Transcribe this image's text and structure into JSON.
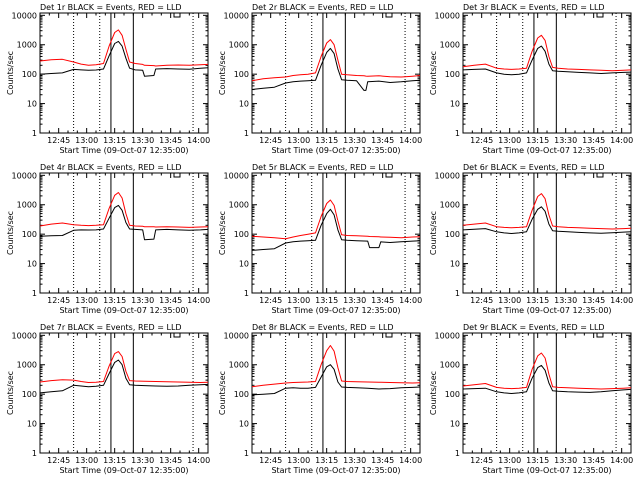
{
  "colors": {
    "events": "#000000",
    "lld": "#ff0000",
    "axes": "#000000"
  },
  "chart_data": [
    {
      "type": "line",
      "title": "Det 1r BLACK = Events, RED = LLD",
      "xlabel": "Start Time (09-Oct-07 12:35:00)",
      "ylabel": "Counts/sec",
      "xticks": [
        "12:45",
        "13:00",
        "13:15",
        "13:30",
        "13:45",
        "14:00"
      ],
      "yticks": [
        "1",
        "10",
        "100",
        "1000",
        "10000"
      ],
      "ylim": [
        1,
        12000
      ],
      "yscale": "log",
      "xlim_minutes": [
        35,
        125
      ],
      "dotted_x_minutes": [
        53,
        67,
        117
      ],
      "solid_x_minutes": [
        73,
        85
      ],
      "x_minutes": [
        35,
        41,
        47,
        53,
        57,
        61,
        65,
        69,
        72,
        75,
        77,
        79,
        81,
        83,
        86,
        90,
        91,
        96,
        97,
        103,
        109,
        115,
        121,
        125
      ],
      "series": [
        {
          "values": [
            100,
            105,
            110,
            145,
            140,
            135,
            138,
            150,
            420,
            1100,
            1300,
            900,
            350,
            160,
            140,
            135,
            85,
            90,
            150,
            155,
            150,
            148,
            160,
            165
          ]
        },
        {
          "values": [
            280,
            310,
            320,
            260,
            220,
            200,
            210,
            230,
            900,
            2600,
            3200,
            2100,
            700,
            260,
            230,
            215,
            200,
            195,
            190,
            200,
            205,
            200,
            210,
            215
          ]
        }
      ]
    },
    {
      "type": "line",
      "title": "Det 2r BLACK = Events, RED = LLD",
      "xlabel": "Start Time (09-Oct-07 12:35:00)",
      "ylabel": "Counts/sec",
      "xticks": [
        "12:45",
        "13:00",
        "13:15",
        "13:30",
        "13:45",
        "14:00"
      ],
      "yticks": [
        "1",
        "10",
        "100",
        "1000",
        "10000"
      ],
      "ylim": [
        1,
        12000
      ],
      "yscale": "log",
      "xlim_minutes": [
        35,
        125
      ],
      "dotted_x_minutes": [
        53,
        67,
        117
      ],
      "solid_x_minutes": [
        73,
        85
      ],
      "x_minutes": [
        35,
        41,
        47,
        53,
        57,
        61,
        65,
        69,
        72,
        75,
        77,
        79,
        81,
        83,
        86,
        91,
        95,
        96,
        97,
        103,
        109,
        115,
        121,
        125
      ],
      "series": [
        {
          "values": [
            30,
            33,
            36,
            50,
            55,
            58,
            60,
            62,
            200,
            550,
            750,
            500,
            150,
            65,
            62,
            60,
            28,
            28,
            55,
            58,
            52,
            55,
            60,
            62
          ]
        },
        {
          "values": [
            60,
            70,
            75,
            80,
            90,
            95,
            100,
            110,
            400,
            1150,
            1500,
            1000,
            300,
            100,
            95,
            90,
            88,
            86,
            85,
            88,
            82,
            80,
            85,
            90
          ]
        }
      ]
    },
    {
      "type": "line",
      "title": "Det 3r BLACK = Events, RED = LLD",
      "xlabel": "Start Time (09-Oct-07 12:35:00)",
      "ylabel": "Counts/sec",
      "xticks": [
        "12:45",
        "13:00",
        "13:15",
        "13:30",
        "13:45",
        "14:00"
      ],
      "yticks": [
        "1",
        "10",
        "100",
        "1000",
        "10000"
      ],
      "ylim": [
        1,
        12000
      ],
      "yscale": "log",
      "xlim_minutes": [
        35,
        125
      ],
      "dotted_x_minutes": [
        53,
        67,
        117
      ],
      "solid_x_minutes": [
        73,
        85
      ],
      "x_minutes": [
        35,
        41,
        47,
        53,
        57,
        61,
        65,
        69,
        72,
        75,
        77,
        79,
        81,
        83,
        86,
        91,
        97,
        103,
        109,
        115,
        121,
        125
      ],
      "series": [
        {
          "values": [
            140,
            145,
            150,
            110,
            100,
            95,
            100,
            110,
            300,
            750,
            900,
            600,
            220,
            130,
            125,
            120,
            115,
            110,
            105,
            110,
            115,
            118
          ]
        },
        {
          "values": [
            180,
            200,
            220,
            160,
            150,
            145,
            150,
            160,
            600,
            1700,
            2100,
            1400,
            400,
            170,
            160,
            150,
            145,
            140,
            135,
            130,
            135,
            140
          ]
        }
      ]
    },
    {
      "type": "line",
      "title": "Det 4r BLACK = Events, RED = LLD",
      "xlabel": "Start Time (09-Oct-07 12:35:00)",
      "ylabel": "Counts/sec",
      "xticks": [
        "12:45",
        "13:00",
        "13:15",
        "13:30",
        "13:45",
        "14:00"
      ],
      "yticks": [
        "1",
        "10",
        "100",
        "1000",
        "10000"
      ],
      "ylim": [
        1,
        12000
      ],
      "yscale": "log",
      "xlim_minutes": [
        35,
        125
      ],
      "dotted_x_minutes": [
        53,
        67,
        117
      ],
      "solid_x_minutes": [
        73,
        85
      ],
      "x_minutes": [
        35,
        41,
        47,
        53,
        57,
        61,
        65,
        69,
        72,
        75,
        77,
        79,
        81,
        83,
        86,
        90,
        91,
        96,
        97,
        103,
        109,
        115,
        121,
        125
      ],
      "series": [
        {
          "values": [
            85,
            88,
            90,
            135,
            140,
            138,
            140,
            150,
            350,
            800,
            950,
            650,
            250,
            150,
            145,
            140,
            65,
            68,
            140,
            145,
            140,
            135,
            140,
            145
          ]
        },
        {
          "values": [
            190,
            220,
            240,
            210,
            200,
            195,
            200,
            210,
            750,
            2100,
            2600,
            1700,
            500,
            200,
            190,
            185,
            180,
            178,
            175,
            180,
            175,
            170,
            175,
            180
          ]
        }
      ]
    },
    {
      "type": "line",
      "title": "Det 5r BLACK = Events, RED = LLD",
      "xlabel": "Start Time (09-Oct-07 12:35:00)",
      "ylabel": "Counts/sec",
      "xticks": [
        "12:45",
        "13:00",
        "13:15",
        "13:30",
        "13:45",
        "14:00"
      ],
      "yticks": [
        "1",
        "10",
        "100",
        "1000",
        "10000"
      ],
      "ylim": [
        1,
        12000
      ],
      "yscale": "log",
      "xlim_minutes": [
        35,
        125
      ],
      "dotted_x_minutes": [
        53,
        67,
        117
      ],
      "solid_x_minutes": [
        73,
        85
      ],
      "x_minutes": [
        35,
        41,
        47,
        53,
        57,
        61,
        65,
        69,
        72,
        75,
        77,
        79,
        81,
        83,
        86,
        91,
        97,
        98,
        103,
        104,
        109,
        115,
        121,
        125
      ],
      "series": [
        {
          "values": [
            28,
            30,
            32,
            50,
            55,
            58,
            60,
            62,
            200,
            500,
            700,
            450,
            140,
            65,
            62,
            60,
            58,
            35,
            35,
            55,
            52,
            55,
            58,
            60
          ]
        },
        {
          "values": [
            85,
            80,
            75,
            70,
            80,
            90,
            100,
            110,
            400,
            1100,
            1450,
            950,
            280,
            95,
            90,
            88,
            85,
            83,
            82,
            80,
            78,
            75,
            80,
            82
          ]
        }
      ]
    },
    {
      "type": "line",
      "title": "Det 6r BLACK = Events, RED = LLD",
      "xlabel": "Start Time (09-Oct-07 12:35:00)",
      "ylabel": "Counts/sec",
      "xticks": [
        "12:45",
        "13:00",
        "13:15",
        "13:30",
        "13:45",
        "14:00"
      ],
      "yticks": [
        "1",
        "10",
        "100",
        "1000",
        "10000"
      ],
      "ylim": [
        1,
        12000
      ],
      "yscale": "log",
      "xlim_minutes": [
        35,
        125
      ],
      "dotted_x_minutes": [
        53,
        67,
        117
      ],
      "solid_x_minutes": [
        73,
        85
      ],
      "x_minutes": [
        35,
        41,
        47,
        53,
        57,
        61,
        65,
        69,
        72,
        75,
        77,
        79,
        81,
        83,
        86,
        91,
        97,
        103,
        109,
        115,
        121,
        125
      ],
      "series": [
        {
          "values": [
            140,
            148,
            155,
            120,
            110,
            105,
            110,
            120,
            320,
            700,
            850,
            600,
            220,
            130,
            125,
            120,
            115,
            110,
            108,
            112,
            118,
            120
          ]
        },
        {
          "values": [
            200,
            220,
            240,
            180,
            170,
            165,
            170,
            180,
            650,
            1900,
            2400,
            1600,
            450,
            190,
            180,
            170,
            165,
            160,
            155,
            150,
            155,
            160
          ]
        }
      ]
    },
    {
      "type": "line",
      "title": "Det 7r BLACK = Events, RED = LLD",
      "xlabel": "Start Time (09-Oct-07 12:35:00)",
      "ylabel": "Counts/sec",
      "xticks": [
        "12:45",
        "13:00",
        "13:15",
        "13:30",
        "13:45",
        "14:00"
      ],
      "yticks": [
        "1",
        "10",
        "100",
        "1000",
        "10000"
      ],
      "ylim": [
        1,
        12000
      ],
      "yscale": "log",
      "xlim_minutes": [
        35,
        125
      ],
      "dotted_x_minutes": [
        53,
        67,
        117
      ],
      "solid_x_minutes": [
        73,
        85
      ],
      "x_minutes": [
        35,
        41,
        47,
        53,
        57,
        61,
        65,
        69,
        72,
        75,
        77,
        79,
        81,
        83,
        86,
        91,
        97,
        103,
        109,
        115,
        121,
        125
      ],
      "series": [
        {
          "values": [
            110,
            120,
            130,
            200,
            190,
            180,
            185,
            200,
            500,
            1200,
            1450,
            1000,
            350,
            210,
            200,
            195,
            190,
            185,
            190,
            200,
            210,
            215
          ]
        },
        {
          "values": [
            260,
            290,
            310,
            300,
            270,
            250,
            255,
            270,
            900,
            2400,
            2800,
            1900,
            600,
            290,
            280,
            275,
            270,
            265,
            260,
            255,
            250,
            255
          ]
        }
      ]
    },
    {
      "type": "line",
      "title": "Det 8r BLACK = Events, RED = LLD",
      "xlabel": "Start Time (09-Oct-07 12:35:00)",
      "ylabel": "Counts/sec",
      "xticks": [
        "12:45",
        "13:00",
        "13:15",
        "13:30",
        "13:45",
        "14:00"
      ],
      "yticks": [
        "1",
        "10",
        "100",
        "1000",
        "10000"
      ],
      "ylim": [
        1,
        12000
      ],
      "yscale": "log",
      "xlim_minutes": [
        35,
        125
      ],
      "dotted_x_minutes": [
        53,
        67,
        117
      ],
      "solid_x_minutes": [
        73,
        85
      ],
      "x_minutes": [
        35,
        41,
        47,
        53,
        57,
        61,
        65,
        69,
        72,
        75,
        77,
        79,
        81,
        83,
        86,
        91,
        97,
        103,
        109,
        115,
        121,
        125
      ],
      "series": [
        {
          "values": [
            95,
            100,
            105,
            160,
            165,
            160,
            160,
            170,
            380,
            850,
            1000,
            700,
            260,
            175,
            170,
            165,
            160,
            150,
            155,
            165,
            170,
            175
          ]
        },
        {
          "values": [
            180,
            200,
            220,
            240,
            250,
            255,
            260,
            270,
            1000,
            3000,
            4500,
            2900,
            800,
            280,
            270,
            265,
            260,
            255,
            250,
            245,
            240,
            245
          ]
        }
      ]
    },
    {
      "type": "line",
      "title": "Det 9r BLACK = Events, RED = LLD",
      "xlabel": "Start Time (09-Oct-07 12:35:00)",
      "ylabel": "Counts/sec",
      "xticks": [
        "12:45",
        "13:00",
        "13:15",
        "13:30",
        "13:45",
        "14:00"
      ],
      "yticks": [
        "1",
        "10",
        "100",
        "1000",
        "10000"
      ],
      "ylim": [
        1,
        12000
      ],
      "yscale": "log",
      "xlim_minutes": [
        35,
        125
      ],
      "dotted_x_minutes": [
        53,
        67,
        117
      ],
      "solid_x_minutes": [
        73,
        85
      ],
      "x_minutes": [
        35,
        41,
        47,
        53,
        57,
        61,
        65,
        69,
        72,
        75,
        77,
        79,
        81,
        83,
        86,
        91,
        97,
        103,
        109,
        115,
        121,
        125
      ],
      "series": [
        {
          "values": [
            150,
            155,
            160,
            120,
            110,
            105,
            110,
            120,
            350,
            800,
            950,
            650,
            240,
            130,
            125,
            120,
            118,
            115,
            120,
            130,
            140,
            145
          ]
        },
        {
          "values": [
            190,
            210,
            230,
            170,
            160,
            155,
            160,
            170,
            700,
            2000,
            2500,
            1700,
            480,
            180,
            170,
            165,
            160,
            155,
            150,
            155,
            160,
            165
          ]
        }
      ]
    }
  ]
}
